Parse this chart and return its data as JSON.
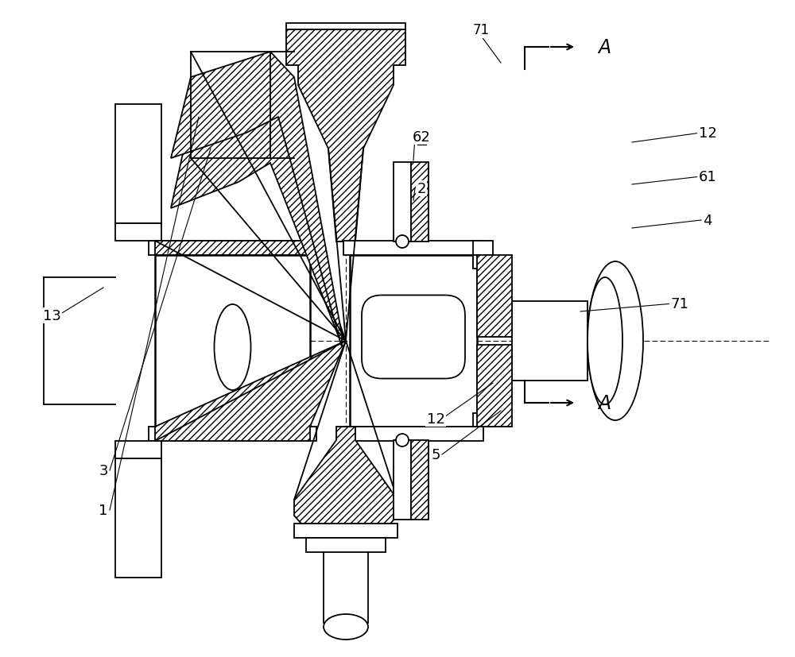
{
  "bg": "#ffffff",
  "lc": "#000000",
  "figw": 10.0,
  "figh": 8.28,
  "dpi": 100
}
